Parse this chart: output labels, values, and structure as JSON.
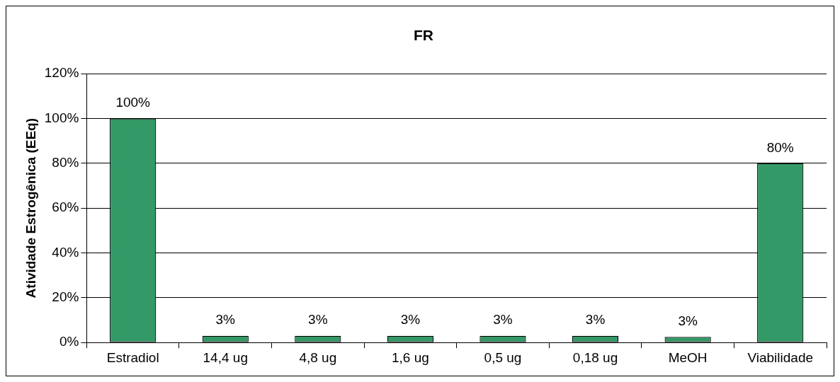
{
  "chart_data": {
    "type": "bar",
    "title": "FR",
    "ylabel": "Atividade Estrogênica (EEq)",
    "categories": [
      "Estradiol",
      "14,4 ug",
      "4,8 ug",
      "1,6 ug",
      "0,5 ug",
      "0,18 ug",
      "MeOH",
      "Viabilidade"
    ],
    "values": [
      100,
      3,
      3,
      3,
      3,
      3,
      2.5,
      80
    ],
    "value_labels": [
      "100%",
      "3%",
      "3%",
      "3%",
      "3%",
      "3%",
      "3%",
      "80%"
    ],
    "color": "#339966",
    "ylim": [
      0,
      120
    ],
    "yticks": [
      {
        "value": 0,
        "label": "0%"
      },
      {
        "value": 20,
        "label": "20%"
      },
      {
        "value": 40,
        "label": "40%"
      },
      {
        "value": 60,
        "label": "60%"
      },
      {
        "value": 80,
        "label": "80%"
      },
      {
        "value": 100,
        "label": "100%"
      },
      {
        "value": 120,
        "label": "120%"
      }
    ],
    "grid": "y",
    "legend": false
  }
}
